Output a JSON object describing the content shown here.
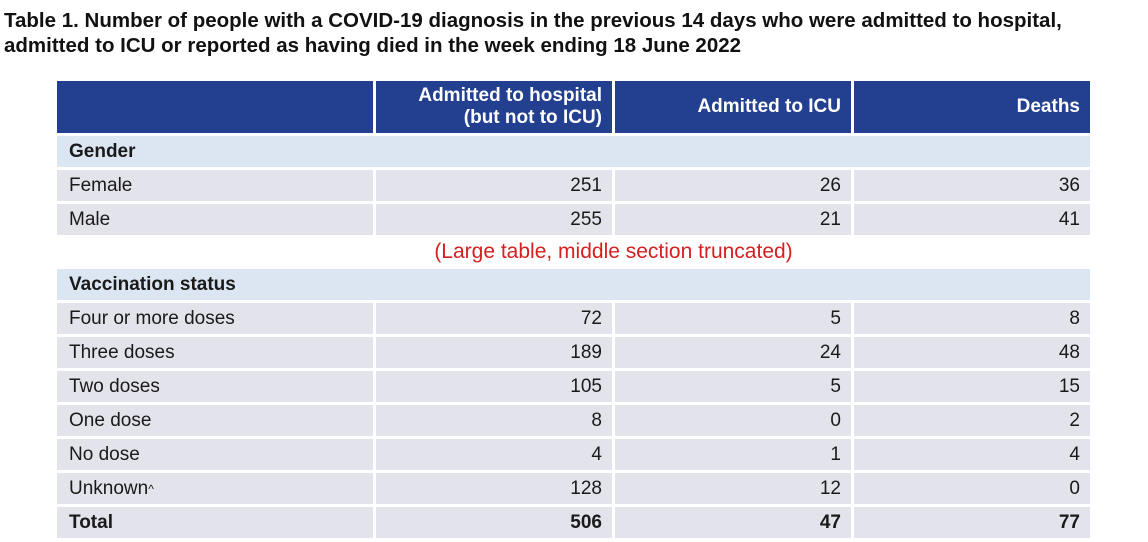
{
  "title": "Table 1. Number of people with a COVID-19 diagnosis in the previous 14 days who were admitted to hospital, admitted to ICU or reported as having died in the week ending 18 June 2022",
  "title_line1": "Table 1. Number of people with a COVID-19 diagnosis in the previous 14 days who were admitted to hospital,",
  "title_line2": "admitted to ICU or reported as having died in the week ending 18 June 2022",
  "header": {
    "col0": "",
    "col1_line1": "Admitted to hospital",
    "col1_line2": "(but not to ICU)",
    "col2": "Admitted to ICU",
    "col3": "Deaths"
  },
  "gender": {
    "label": "Gender",
    "rows": [
      {
        "label": "Female",
        "hospital": "251",
        "icu": "26",
        "deaths": "36"
      },
      {
        "label": "Male",
        "hospital": "255",
        "icu": "21",
        "deaths": "41"
      }
    ]
  },
  "truncated_note": "(Large table, middle section truncated)",
  "vaccination": {
    "label": "Vaccination status",
    "rows": [
      {
        "label": "Four or more doses",
        "hospital": "72",
        "icu": "5",
        "deaths": "8"
      },
      {
        "label": "Three doses",
        "hospital": "189",
        "icu": "24",
        "deaths": "48"
      },
      {
        "label": "Two doses",
        "hospital": "105",
        "icu": "5",
        "deaths": "15"
      },
      {
        "label": "One dose",
        "hospital": "8",
        "icu": "0",
        "deaths": "2"
      },
      {
        "label": "No dose",
        "hospital": "4",
        "icu": "1",
        "deaths": "4"
      },
      {
        "label": "Unknown",
        "label_sup": "^",
        "hospital": "128",
        "icu": "12",
        "deaths": "0"
      }
    ]
  },
  "total": {
    "label": "Total",
    "hospital": "506",
    "icu": "47",
    "deaths": "77"
  },
  "colors": {
    "header_bg": "#233f8f",
    "section_bg": "#dce6f2",
    "row_bg": "#e3e3ec",
    "note": "#d42020"
  }
}
